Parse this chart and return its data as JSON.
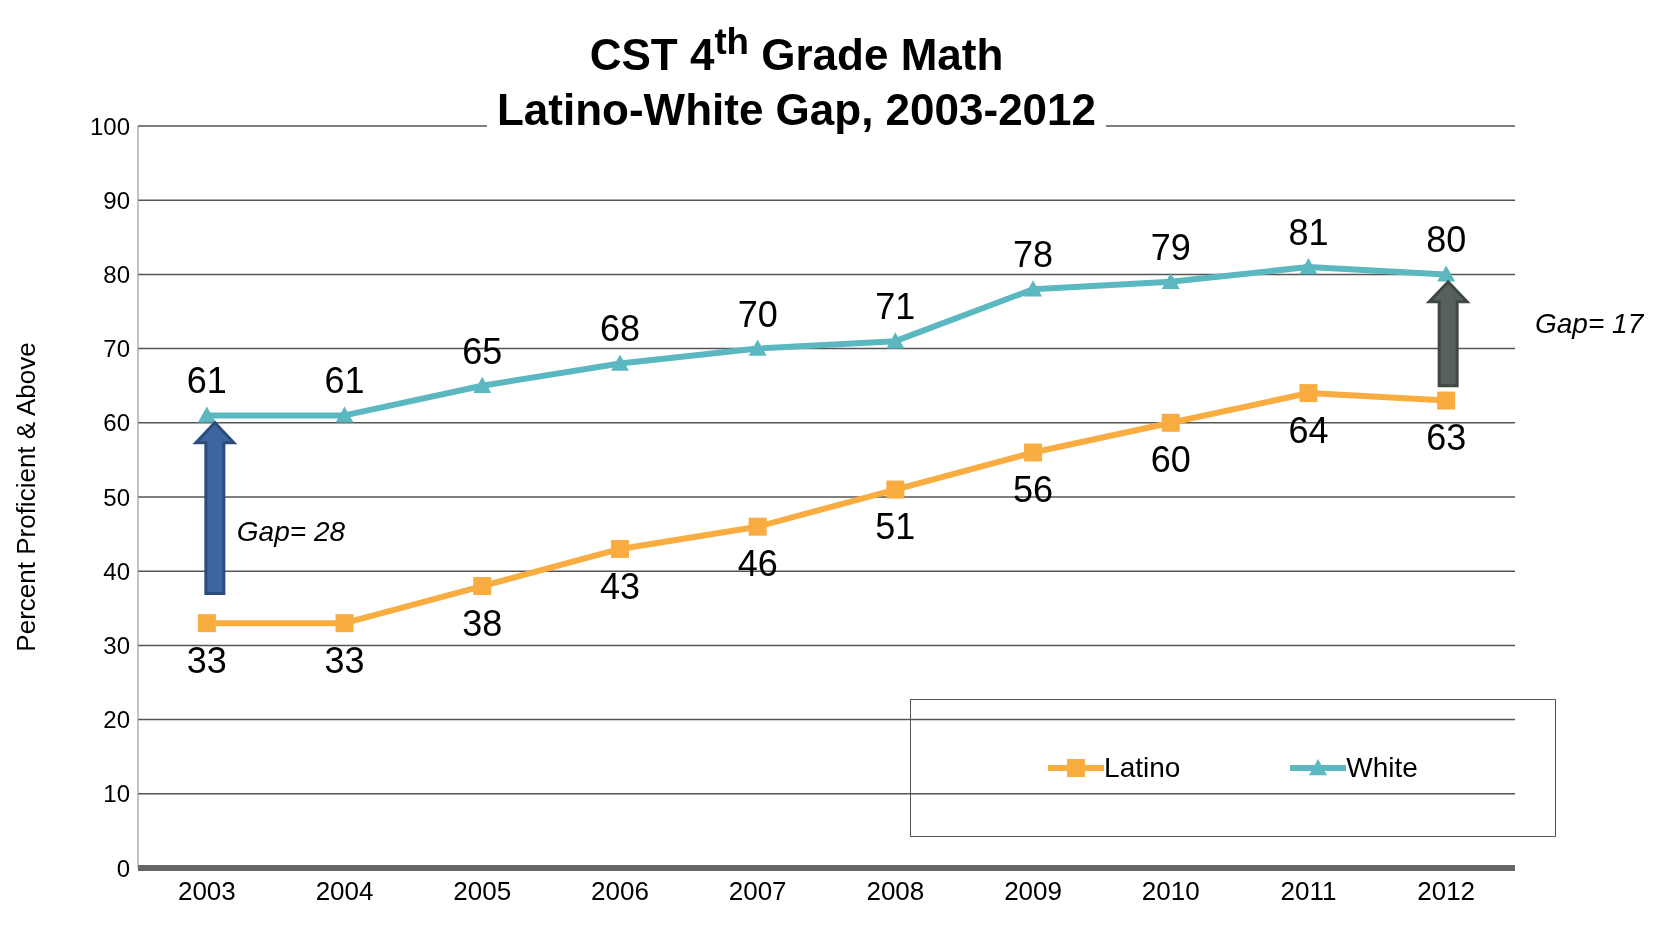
{
  "chart_data": {
    "type": "line",
    "title": "CST 4$^{th}$ Grade Math",
    "subtitle": "Latino-White Gap, 2003-2012",
    "ylabel": "Percent Proficient & Above",
    "categories": [
      "2003",
      "2004",
      "2005",
      "2006",
      "2007",
      "2008",
      "2009",
      "2010",
      "2011",
      "2012"
    ],
    "series": [
      {
        "name": "Latino",
        "color": "#f9ac40",
        "marker": "square",
        "values": [
          33,
          33,
          38,
          43,
          46,
          51,
          56,
          60,
          64,
          63
        ]
      },
      {
        "name": "White",
        "color": "#5bb8c1",
        "marker": "triangle",
        "values": [
          61,
          61,
          65,
          68,
          70,
          71,
          78,
          79,
          81,
          80
        ]
      }
    ],
    "ylim": [
      0,
      100
    ],
    "yticks": [
      0,
      10,
      20,
      30,
      40,
      50,
      60,
      70,
      80,
      90,
      100
    ],
    "grid": "y",
    "legend": "bottom right",
    "data_labels": true,
    "line_style": "solid",
    "annotations": [
      "Gap= 28",
      "Gap= 17"
    ]
  }
}
